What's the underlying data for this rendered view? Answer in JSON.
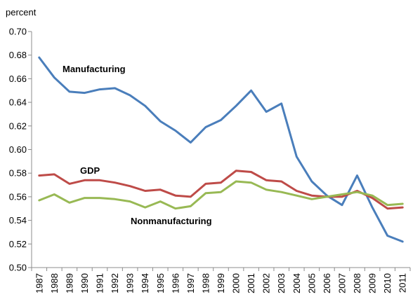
{
  "chart_data": {
    "type": "line",
    "ylabel": "percent",
    "xlabel": "",
    "title": "",
    "ylim": [
      0.5,
      0.7
    ],
    "ytick_step": 0.02,
    "grid": false,
    "categories": [
      "1987",
      "1988",
      "1989",
      "1990",
      "1991",
      "1992",
      "1993",
      "1994",
      "1995",
      "1996",
      "1997",
      "1998",
      "1999",
      "2000",
      "2001",
      "2002",
      "2003",
      "2004",
      "2005",
      "2006",
      "2007",
      "2008",
      "2009",
      "2010",
      "2011"
    ],
    "series": [
      {
        "name": "Manufacturing",
        "color": "#4a7ebb",
        "values": [
          0.678,
          0.661,
          0.649,
          0.648,
          0.651,
          0.652,
          0.646,
          0.637,
          0.624,
          0.616,
          0.606,
          0.619,
          0.625,
          0.637,
          0.65,
          0.632,
          0.639,
          0.594,
          0.573,
          0.561,
          0.553,
          0.578,
          0.551,
          0.527,
          0.522
        ]
      },
      {
        "name": "GDP",
        "color": "#be4b48",
        "values": [
          0.578,
          0.579,
          0.571,
          0.574,
          0.574,
          0.572,
          0.569,
          0.565,
          0.566,
          0.561,
          0.56,
          0.571,
          0.572,
          0.582,
          0.581,
          0.574,
          0.573,
          0.565,
          0.561,
          0.56,
          0.56,
          0.565,
          0.559,
          0.55,
          0.551
        ]
      },
      {
        "name": "Nonmanufacturing",
        "color": "#98b954",
        "values": [
          0.557,
          0.562,
          0.555,
          0.559,
          0.559,
          0.558,
          0.556,
          0.551,
          0.556,
          0.55,
          0.552,
          0.563,
          0.564,
          0.573,
          0.572,
          0.566,
          0.564,
          0.561,
          0.558,
          0.56,
          0.562,
          0.564,
          0.561,
          0.553,
          0.554
        ]
      }
    ]
  }
}
